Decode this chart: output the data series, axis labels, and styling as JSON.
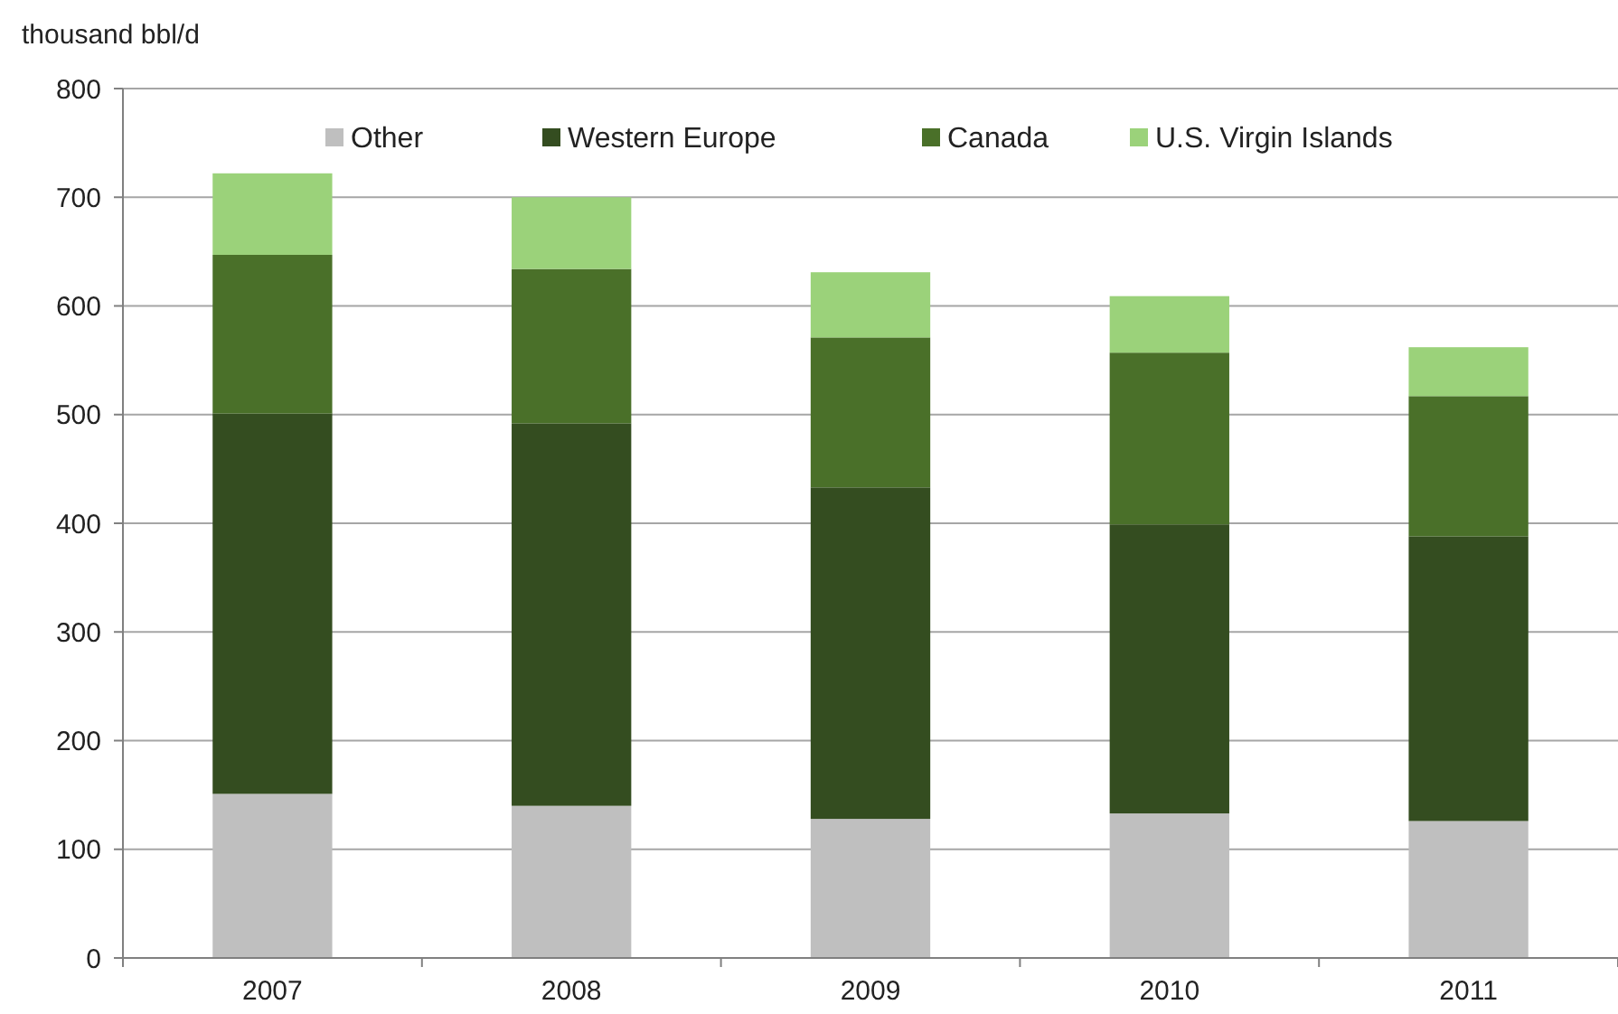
{
  "chart_data": {
    "type": "bar",
    "stacked": true,
    "ylabel": "thousand bbl/d",
    "categories": [
      "2007",
      "2008",
      "2009",
      "2010",
      "2011"
    ],
    "series": [
      {
        "name": "Other",
        "color": "#bfbfbf",
        "values": [
          151,
          140,
          128,
          133,
          126
        ]
      },
      {
        "name": "Western Europe",
        "color": "#344d20",
        "values": [
          350,
          352,
          305,
          266,
          262
        ]
      },
      {
        "name": "Canada",
        "color": "#4a7029",
        "values": [
          146,
          142,
          138,
          158,
          129
        ]
      },
      {
        "name": "U.S. Virgin Islands",
        "color": "#9bd27a",
        "values": [
          75,
          66,
          60,
          52,
          45
        ]
      }
    ],
    "ylim": [
      0,
      800
    ],
    "yticks": [
      0,
      100,
      200,
      300,
      400,
      500,
      600,
      700,
      800
    ],
    "grid": "y",
    "legend": "top"
  }
}
